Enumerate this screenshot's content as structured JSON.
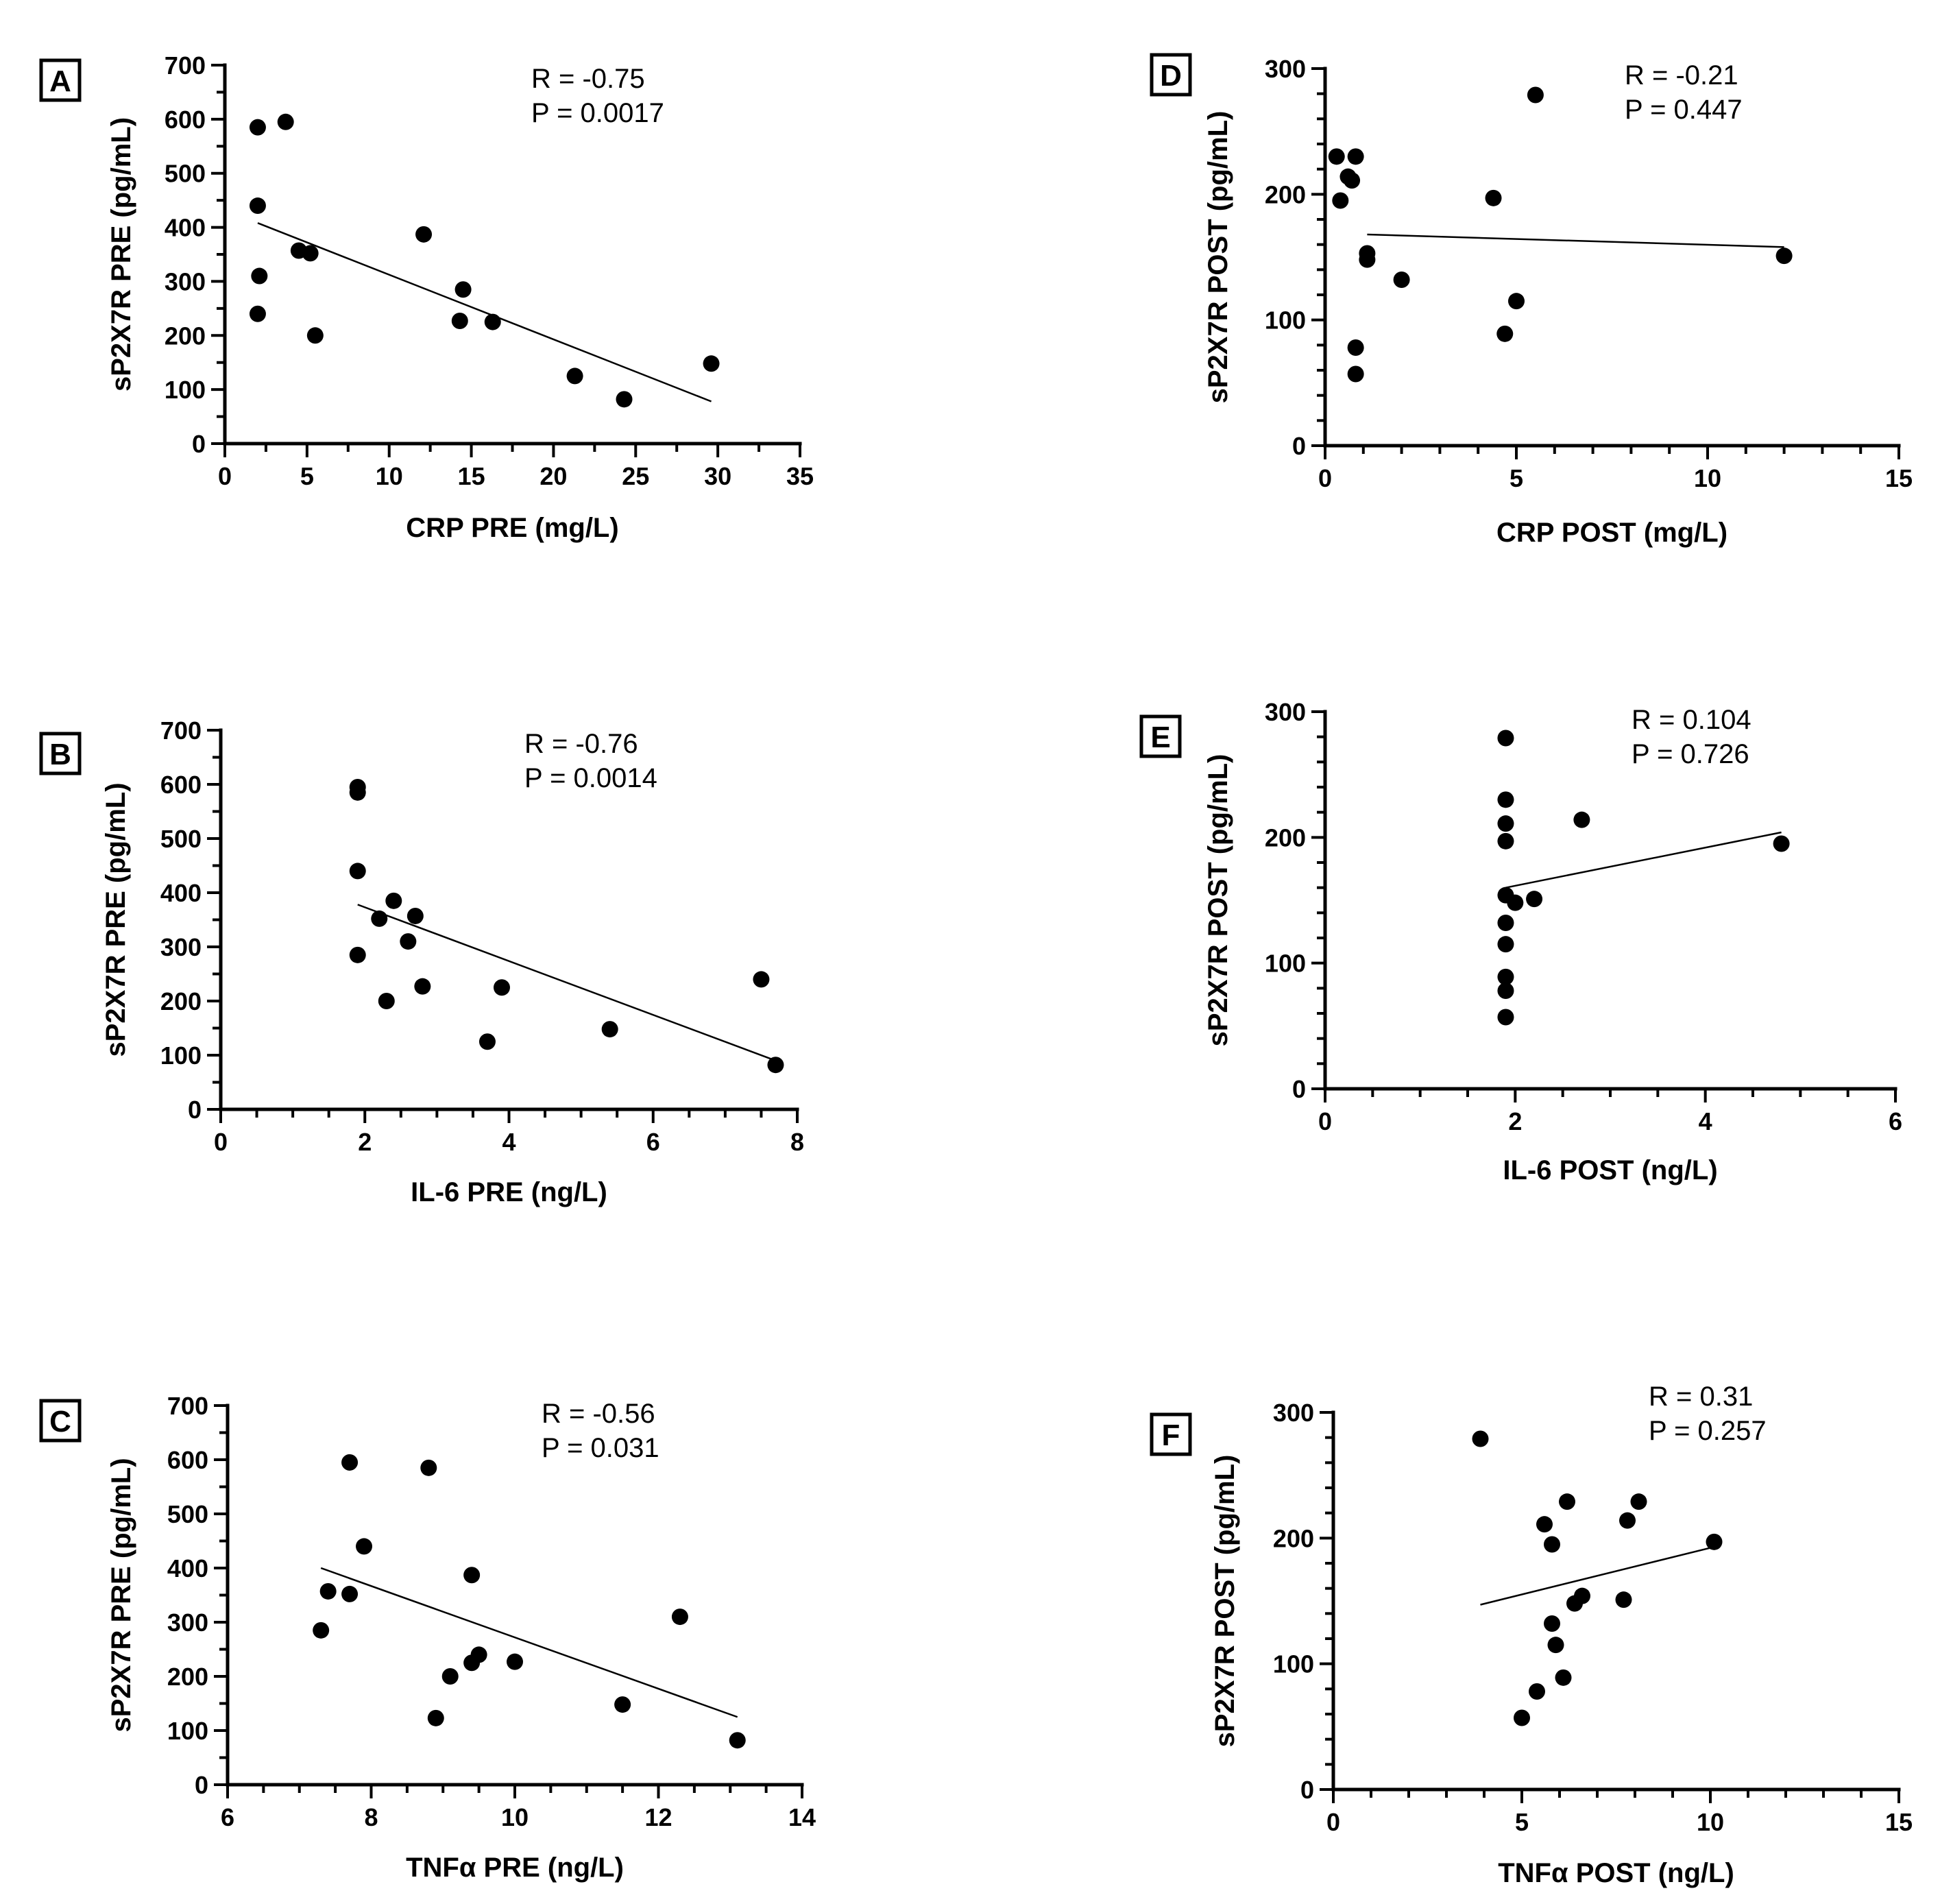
{
  "chart_data": [
    {
      "panel": "A",
      "type": "scatter",
      "title": "",
      "xlabel": "CRP PRE (mg/L)",
      "ylabel": "sP2X7R PRE (pg/mL)",
      "xlim": [
        0,
        35
      ],
      "ylim": [
        0,
        700
      ],
      "xticks": [
        0,
        5,
        10,
        15,
        20,
        25,
        30,
        35
      ],
      "yticks": [
        0,
        100,
        200,
        300,
        400,
        500,
        600,
        700
      ],
      "x_minor": 2,
      "y_minor": 2,
      "annotation": [
        "R = -0.75",
        "P = 0.0017"
      ],
      "points": [
        [
          2,
          585
        ],
        [
          3.7,
          595
        ],
        [
          2,
          440
        ],
        [
          4.5,
          357
        ],
        [
          5.2,
          352
        ],
        [
          2.1,
          310
        ],
        [
          2,
          240
        ],
        [
          5.5,
          200
        ],
        [
          12.1,
          387
        ],
        [
          14.5,
          285
        ],
        [
          14.3,
          227
        ],
        [
          16.3,
          225
        ],
        [
          21.3,
          125
        ],
        [
          24.3,
          82
        ],
        [
          29.6,
          148
        ]
      ],
      "fit": [
        [
          2,
          408
        ],
        [
          29.6,
          78
        ]
      ],
      "grid": false
    },
    {
      "panel": "B",
      "type": "scatter",
      "title": "",
      "xlabel": "IL-6 PRE (ng/L)",
      "ylabel": "sP2X7R PRE (pg/mL)",
      "xlim": [
        0,
        8
      ],
      "ylim": [
        0,
        700
      ],
      "xticks": [
        0,
        2,
        4,
        6,
        8
      ],
      "yticks": [
        0,
        100,
        200,
        300,
        400,
        500,
        600,
        700
      ],
      "x_minor": 4,
      "y_minor": 2,
      "annotation": [
        "R = -0.76",
        "P =  0.0014"
      ],
      "points": [
        [
          1.9,
          595
        ],
        [
          1.9,
          585
        ],
        [
          1.9,
          440
        ],
        [
          2.4,
          385
        ],
        [
          2.2,
          352
        ],
        [
          2.7,
          357
        ],
        [
          2.6,
          310
        ],
        [
          1.9,
          285
        ],
        [
          2.3,
          200
        ],
        [
          2.8,
          227
        ],
        [
          3.9,
          225
        ],
        [
          3.7,
          125
        ],
        [
          5.4,
          148
        ],
        [
          7.5,
          240
        ],
        [
          7.7,
          82
        ]
      ],
      "fit": [
        [
          1.9,
          378
        ],
        [
          7.7,
          90
        ]
      ],
      "grid": false
    },
    {
      "panel": "C",
      "type": "scatter",
      "title": "",
      "xlabel": "TNFα PRE (ng/L)",
      "ylabel": "sP2X7R PRE (pg/mL)",
      "xlim": [
        6,
        14
      ],
      "ylim": [
        0,
        700
      ],
      "xticks": [
        6,
        8,
        10,
        12,
        14
      ],
      "yticks": [
        0,
        100,
        200,
        300,
        400,
        500,
        600,
        700
      ],
      "x_minor": 4,
      "y_minor": 2,
      "annotation": [
        "R = -0.56",
        "P = 0.031"
      ],
      "points": [
        [
          7.7,
          595
        ],
        [
          8.8,
          585
        ],
        [
          7.9,
          440
        ],
        [
          9.4,
          387
        ],
        [
          7.4,
          357
        ],
        [
          7.7,
          352
        ],
        [
          7.3,
          285
        ],
        [
          12.3,
          310
        ],
        [
          9.5,
          240
        ],
        [
          10,
          227
        ],
        [
          9.4,
          225
        ],
        [
          9.1,
          200
        ],
        [
          8.9,
          123
        ],
        [
          11.5,
          148
        ],
        [
          13.1,
          82
        ]
      ],
      "fit": [
        [
          7.3,
          400
        ],
        [
          13.1,
          125
        ]
      ],
      "grid": false
    },
    {
      "panel": "D",
      "type": "scatter",
      "title": "",
      "xlabel": "CRP POST  (mg/L)",
      "ylabel": "sP2X7R POST (pg/mL)",
      "xlim": [
        0,
        15
      ],
      "ylim": [
        0,
        300
      ],
      "xticks": [
        0,
        5,
        10,
        15
      ],
      "yticks": [
        0,
        100,
        200,
        300
      ],
      "x_minor": 5,
      "y_minor": 5,
      "annotation": [
        "R = -0.21",
        "P = 0.447"
      ],
      "points": [
        [
          0.3,
          230
        ],
        [
          0.8,
          230
        ],
        [
          0.6,
          214
        ],
        [
          0.7,
          211
        ],
        [
          0.4,
          195
        ],
        [
          1.1,
          153
        ],
        [
          1.1,
          148
        ],
        [
          2,
          132
        ],
        [
          4.4,
          197
        ],
        [
          5.5,
          279
        ],
        [
          5,
          115
        ],
        [
          4.7,
          89
        ],
        [
          0.8,
          78
        ],
        [
          0.8,
          57
        ],
        [
          12,
          151
        ]
      ],
      "fit": [
        [
          1.1,
          168
        ],
        [
          12,
          158
        ]
      ],
      "grid": false
    },
    {
      "panel": "E",
      "type": "scatter",
      "title": "",
      "xlabel": "IL-6 POST (ng/L)",
      "ylabel": "sP2X7R POST (pg/mL)",
      "xlim": [
        0,
        6
      ],
      "ylim": [
        0,
        300
      ],
      "xticks": [
        0,
        2,
        4,
        6
      ],
      "yticks": [
        0,
        100,
        200,
        300
      ],
      "x_minor": 4,
      "y_minor": 5,
      "annotation": [
        "R = 0.104",
        "P = 0.726"
      ],
      "points": [
        [
          1.9,
          279
        ],
        [
          1.9,
          230
        ],
        [
          1.9,
          211
        ],
        [
          1.9,
          197
        ],
        [
          1.9,
          154
        ],
        [
          2,
          148
        ],
        [
          2.2,
          151
        ],
        [
          1.9,
          132
        ],
        [
          1.9,
          115
        ],
        [
          1.9,
          89
        ],
        [
          1.9,
          78
        ],
        [
          1.9,
          57
        ],
        [
          2.7,
          214
        ],
        [
          4.8,
          195
        ]
      ],
      "fit": [
        [
          1.9,
          160
        ],
        [
          4.8,
          204
        ]
      ],
      "grid": false
    },
    {
      "panel": "F",
      "type": "scatter",
      "title": "",
      "xlabel": "TNFα POST (ng/L)",
      "ylabel": "sP2X7R POST (pg/mL)",
      "xlim": [
        0,
        15
      ],
      "ylim": [
        0,
        300
      ],
      "xticks": [
        0,
        5,
        10,
        15
      ],
      "yticks": [
        0,
        100,
        200,
        300
      ],
      "x_minor": 5,
      "y_minor": 5,
      "annotation": [
        "R = 0.31",
        "P = 0.257"
      ],
      "points": [
        [
          3.9,
          279
        ],
        [
          6.2,
          229
        ],
        [
          5.6,
          211
        ],
        [
          5.8,
          195
        ],
        [
          8.1,
          229
        ],
        [
          7.8,
          214
        ],
        [
          10.1,
          197
        ],
        [
          6.6,
          154
        ],
        [
          6.4,
          148
        ],
        [
          7.7,
          151
        ],
        [
          5.8,
          132
        ],
        [
          5.9,
          115
        ],
        [
          6.1,
          89
        ],
        [
          5.4,
          78
        ],
        [
          5,
          57
        ]
      ],
      "fit": [
        [
          3.9,
          147
        ],
        [
          10.1,
          193
        ]
      ],
      "grid": false
    }
  ]
}
